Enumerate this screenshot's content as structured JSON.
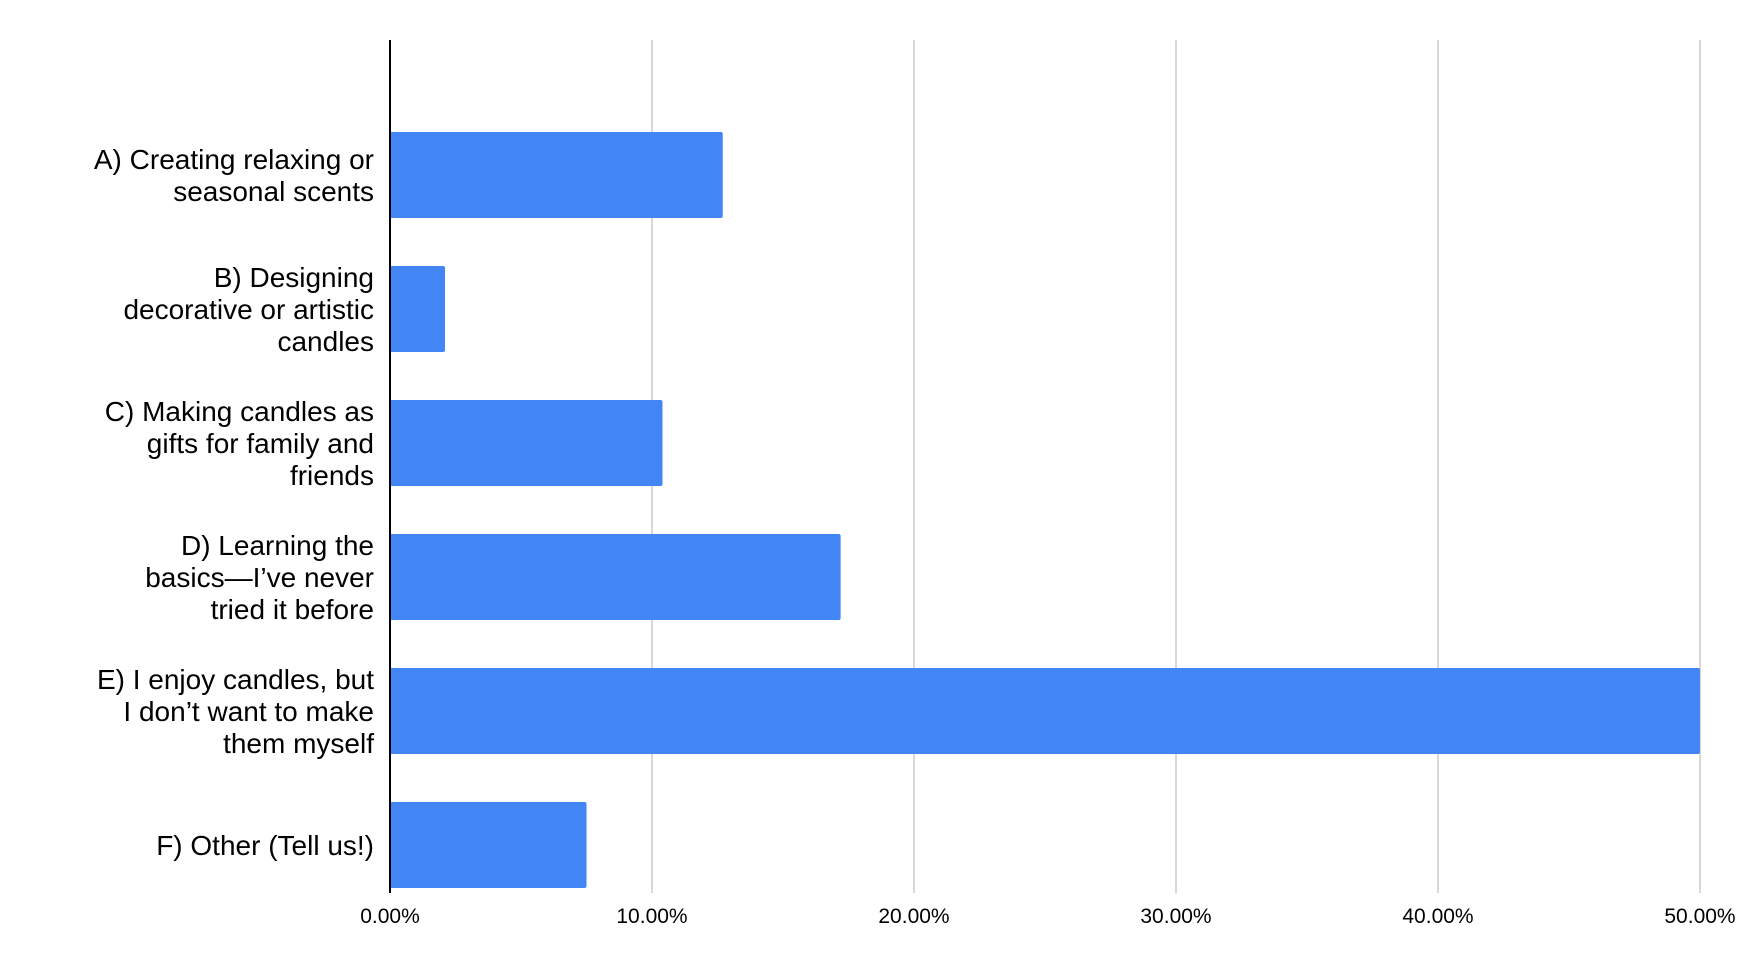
{
  "chart_data": {
    "type": "bar",
    "orientation": "horizontal",
    "categories": [
      [
        "A) Creating relaxing or",
        "seasonal scents"
      ],
      [
        "B) Designing",
        "decorative or artistic",
        "candles"
      ],
      [
        "C) Making candles as",
        "gifts for family and",
        "friends"
      ],
      [
        "D) Learning the",
        "basics—I’ve never",
        "tried it before"
      ],
      [
        "E) I enjoy candles, but",
        "I don’t want to make",
        "them myself"
      ],
      [
        "F) Other (Tell us!)"
      ]
    ],
    "values": [
      12.7,
      2.1,
      10.4,
      17.2,
      50.0,
      7.5
    ],
    "xlim": [
      0,
      50
    ],
    "x_ticks": [
      0,
      10,
      20,
      30,
      40,
      50
    ],
    "x_tick_labels": [
      "0.00%",
      "10.00%",
      "20.00%",
      "30.00%",
      "40.00%",
      "50.00%"
    ],
    "grid": "vertical",
    "legend": "none",
    "bar_color": "#4285f4"
  }
}
